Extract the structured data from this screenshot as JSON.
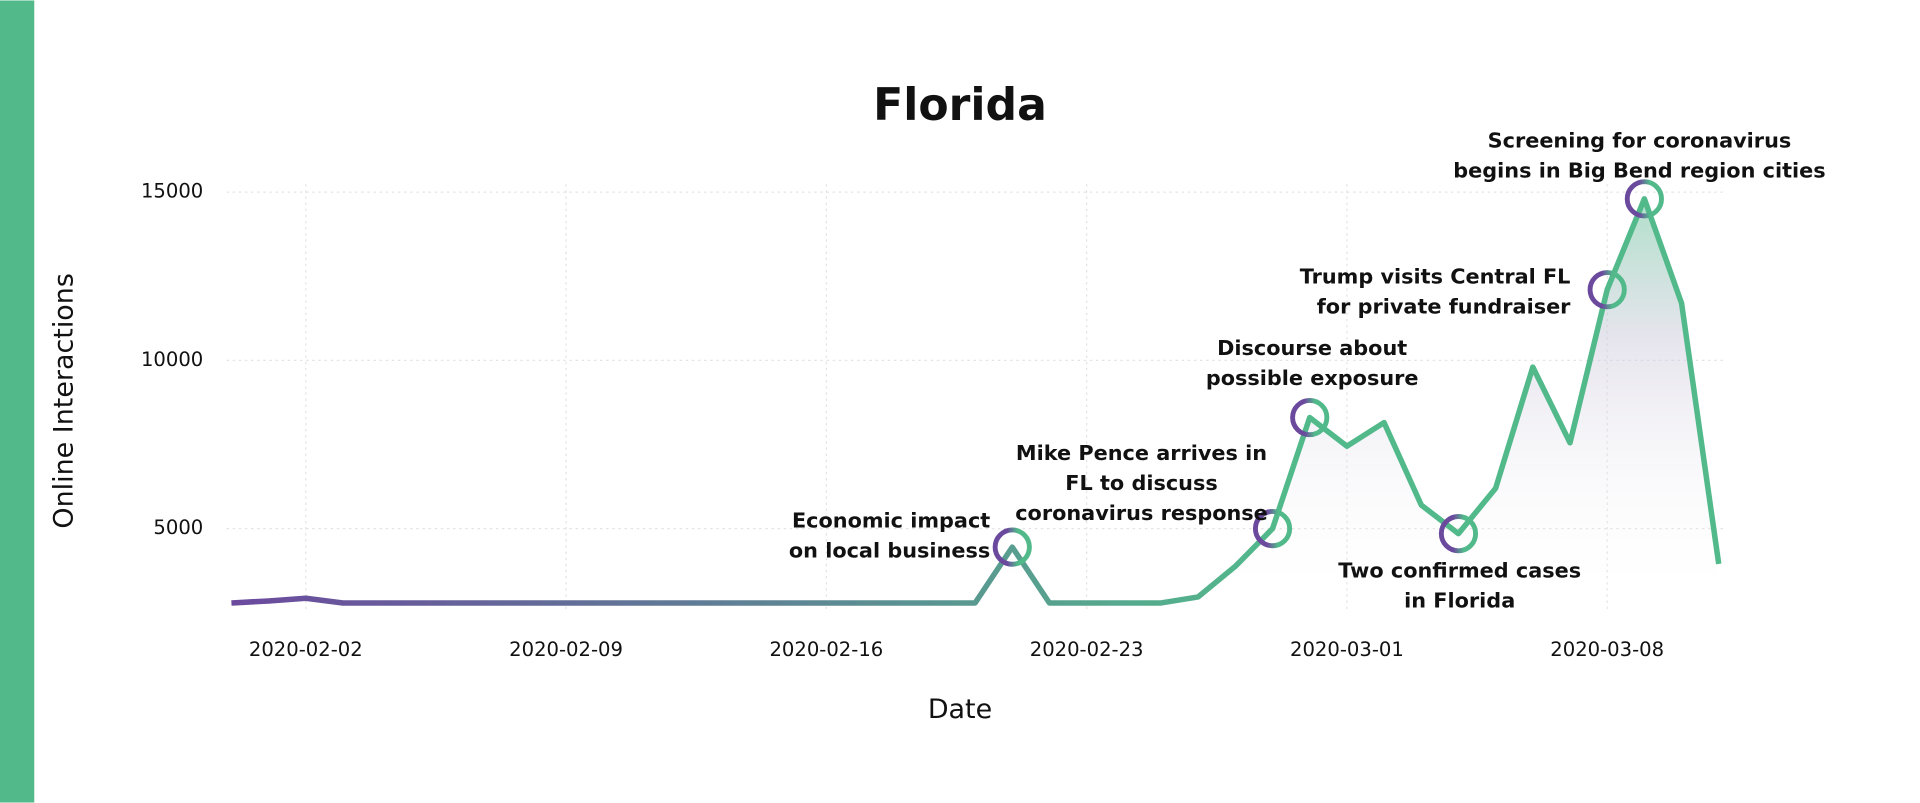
{
  "chart_data": {
    "type": "line",
    "title": "Florida",
    "x_label": "Date",
    "y_label": "Online Interactions",
    "x": [
      "2020-01-31",
      "2020-02-01",
      "2020-02-02",
      "2020-02-03",
      "2020-02-04",
      "2020-02-05",
      "2020-02-06",
      "2020-02-07",
      "2020-02-08",
      "2020-02-09",
      "2020-02-10",
      "2020-02-11",
      "2020-02-12",
      "2020-02-13",
      "2020-02-14",
      "2020-02-15",
      "2020-02-16",
      "2020-02-17",
      "2020-02-18",
      "2020-02-19",
      "2020-02-20",
      "2020-02-21",
      "2020-02-22",
      "2020-02-23",
      "2020-02-24",
      "2020-02-25",
      "2020-02-26",
      "2020-02-27",
      "2020-02-28",
      "2020-02-29",
      "2020-03-01",
      "2020-03-02",
      "2020-03-03",
      "2020-03-04",
      "2020-03-05",
      "2020-03-06",
      "2020-03-07",
      "2020-03-08",
      "2020-03-09",
      "2020-03-10",
      "2020-03-11"
    ],
    "values": [
      2790,
      2850,
      2930,
      2790,
      2790,
      2790,
      2790,
      2790,
      2790,
      2790,
      2790,
      2790,
      2790,
      2790,
      2790,
      2790,
      2790,
      2790,
      2790,
      2790,
      2790,
      4450,
      2790,
      2790,
      2790,
      2790,
      2970,
      3880,
      5000,
      8300,
      7450,
      8150,
      5700,
      4850,
      6200,
      9800,
      7550,
      12100,
      14800,
      11700,
      3950
    ],
    "line_gradient": [
      "#6b4a9e",
      "#52b98b"
    ],
    "xlim": [
      "2020-01-31",
      "2020-03-12"
    ],
    "xticks": [
      "2020-02-02",
      "2020-02-09",
      "2020-02-16",
      "2020-02-23",
      "2020-03-01",
      "2020-03-08"
    ],
    "ylim": [
      2500,
      15600
    ],
    "yticks": [
      5000,
      10000,
      15000
    ],
    "grid": true,
    "annotations": [
      {
        "text": [
          "Economic impact",
          "on local business"
        ],
        "x": "2020-02-21",
        "y": 4450
      },
      {
        "text": [
          "Mike Pence arrives in",
          "FL to discuss",
          "coronavirus response"
        ],
        "x": "2020-02-28",
        "y": 5000
      },
      {
        "text": [
          "Discourse about",
          "possible exposure"
        ],
        "x": "2020-02-29",
        "y": 8300
      },
      {
        "text": [
          "Two confirmed cases",
          "in Florida"
        ],
        "x": "2020-03-04",
        "y": 4850
      },
      {
        "text": [
          "Trump visits Central FL",
          "for private fundraiser"
        ],
        "x": "2020-03-08",
        "y": 12100
      },
      {
        "text": [
          "Screening for coronavirus",
          "begins in Big Bend region cities"
        ],
        "x": "2020-03-09",
        "y": 14800
      }
    ]
  }
}
